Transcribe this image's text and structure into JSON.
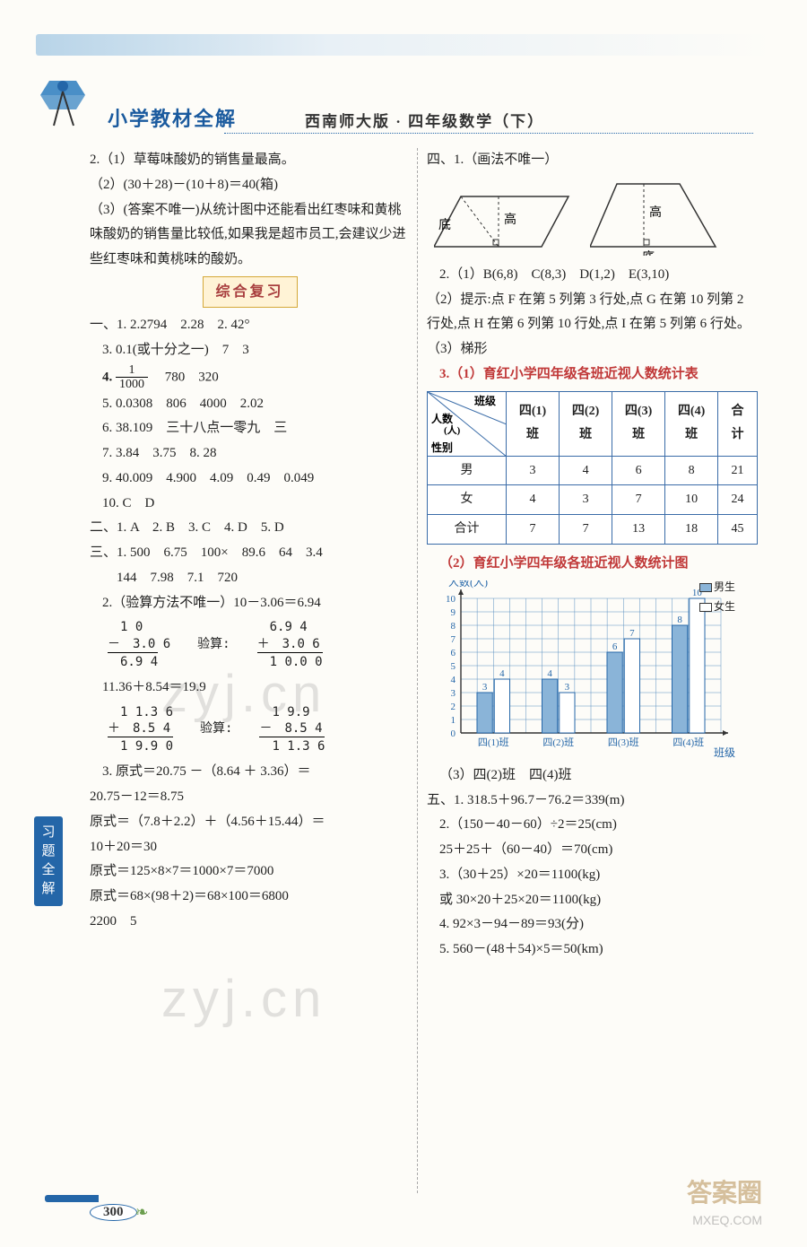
{
  "header": {
    "main": "小学教材全解",
    "sub": "西南师大版 · 四年级数学（下）"
  },
  "side_tab": "习题全解",
  "page_number": "300",
  "left": {
    "p2_lines": [
      "2.（1）草莓味酸奶的销售量最高。",
      "（2）(30＋28)－(10＋8)＝40(箱)",
      "（3）(答案不唯一)从统计图中还能看出红枣味和黄桃味酸奶的销售量比较低,如果我是超市员工,会建议少进些红枣味和黄桃味的酸奶。"
    ],
    "section": "综合复习",
    "one": {
      "l1": "一、1. 2.2794　2.28　2. 42°",
      "l3": "3. 0.1(或十分之一)　7　3",
      "l4a": "4. ",
      "l4b": "　780　320",
      "l5": "5. 0.0308　806　4000　2.02",
      "l6": "6. 38.109　三十八点一零九　三",
      "l7": "7. 3.84　3.75　8. 28",
      "l9": "9. 40.009　4.900　4.09　0.49　0.049",
      "l10": "10. C　D"
    },
    "two": "二、1. A　2. B　3. C　4. D　5. D",
    "three": {
      "l1": "三、1. 500　6.75　100×　89.6　64　3.4",
      "l1b": "　　144　7.98　7.1　720",
      "l2": "2.（验算方法不唯一）10－3.06＝6.94",
      "calc1_left": [
        "　1 0　　",
        "－　3.0 6",
        "　6.9 4"
      ],
      "calc1_right_label": "验算:",
      "calc1_right": [
        "　6.9 4",
        "＋　3.0 6",
        "　1 0.0 0"
      ],
      "l2b": "11.36＋8.54＝19.9",
      "calc2_left": [
        "　1 1.3 6",
        "＋　8.5 4",
        "　1 9.9 0"
      ],
      "calc2_right_label": "验算:",
      "calc2_right": [
        "　1 9.9　",
        "－　8.5 4",
        "　1 1.3 6"
      ],
      "l3a": "3. 原式＝20.75 －（8.64 ＋ 3.36）＝",
      "l3b": "20.75－12＝8.75",
      "l3c": "原式＝（7.8＋2.2）＋（4.56＋15.44）＝",
      "l3d": "10＋20＝30",
      "l3e": "原式＝125×8×7＝1000×7＝7000",
      "l3f": "原式＝68×(98＋2)＝68×100＝6800",
      "l3g": "2200　5"
    },
    "frac": {
      "num": "1",
      "den": "1000"
    }
  },
  "right": {
    "four": {
      "hdr": "四、1.（画法不唯一）",
      "labels": {
        "di": "底",
        "gao": "高"
      },
      "l2": "2.（1）B(6,8)　C(8,3)　D(1,2)　E(3,10)",
      "l2b": "（2）提示:点 F 在第 5 列第 3 行处,点 G 在第 10 列第 2 行处,点 H 在第 6 列第 10 行处,点 I 在第 5 列第 6 行处。",
      "l2c": "（3）梯形",
      "l3hdr": "3.（1）育红小学四年级各班近视人数统计表",
      "table": {
        "diag_top": "班级",
        "diag_mid": "人数（人）",
        "diag_bot": "性别",
        "cols": [
          "四(1)班",
          "四(2)班",
          "四(3)班",
          "四(4)班",
          "合计"
        ],
        "rows": [
          {
            "label": "男",
            "cells": [
              "3",
              "4",
              "6",
              "8",
              "21"
            ]
          },
          {
            "label": "女",
            "cells": [
              "4",
              "3",
              "7",
              "10",
              "24"
            ]
          },
          {
            "label": "合计",
            "cells": [
              "7",
              "7",
              "13",
              "18",
              "45"
            ]
          }
        ]
      },
      "chart": {
        "title": "（2）育红小学四年级各班近视人数统计图",
        "ylabel": "人数(人)",
        "xlabel": "班级",
        "legend": {
          "boys": "男生",
          "girls": "女生"
        },
        "categories": [
          "四(1)班",
          "四(2)班",
          "四(3)班",
          "四(4)班"
        ],
        "boys": [
          3,
          4,
          6,
          8
        ],
        "girls": [
          4,
          3,
          7,
          10
        ],
        "ymax": 10,
        "ystep": 1,
        "boy_color": "#8ab4d8",
        "girl_color": "#ffffff",
        "grid_color": "#5a8fc0",
        "text_color": "#2466a8"
      },
      "l3d": "（3）四(2)班　四(4)班"
    },
    "five": {
      "l1": "五、1. 318.5＋96.7－76.2＝339(m)",
      "l2": "2.（150－40－60）÷2＝25(cm)",
      "l2b": "25＋25＋（60－40）＝70(cm)",
      "l3": "3.（30＋25）×20＝1100(kg)",
      "l3b": "或 30×20＋25×20＝1100(kg)",
      "l4": "4. 92×3－94－89＝93(分)",
      "l5": "5. 560－(48＋54)×5＝50(km)"
    }
  },
  "colors": {
    "blue": "#1a5a9e",
    "page_bg": "#fdfcf8"
  },
  "watermarks": {
    "url": "zyj.cn",
    "site": "MXEQ.COM",
    "ans": "答案圈"
  }
}
